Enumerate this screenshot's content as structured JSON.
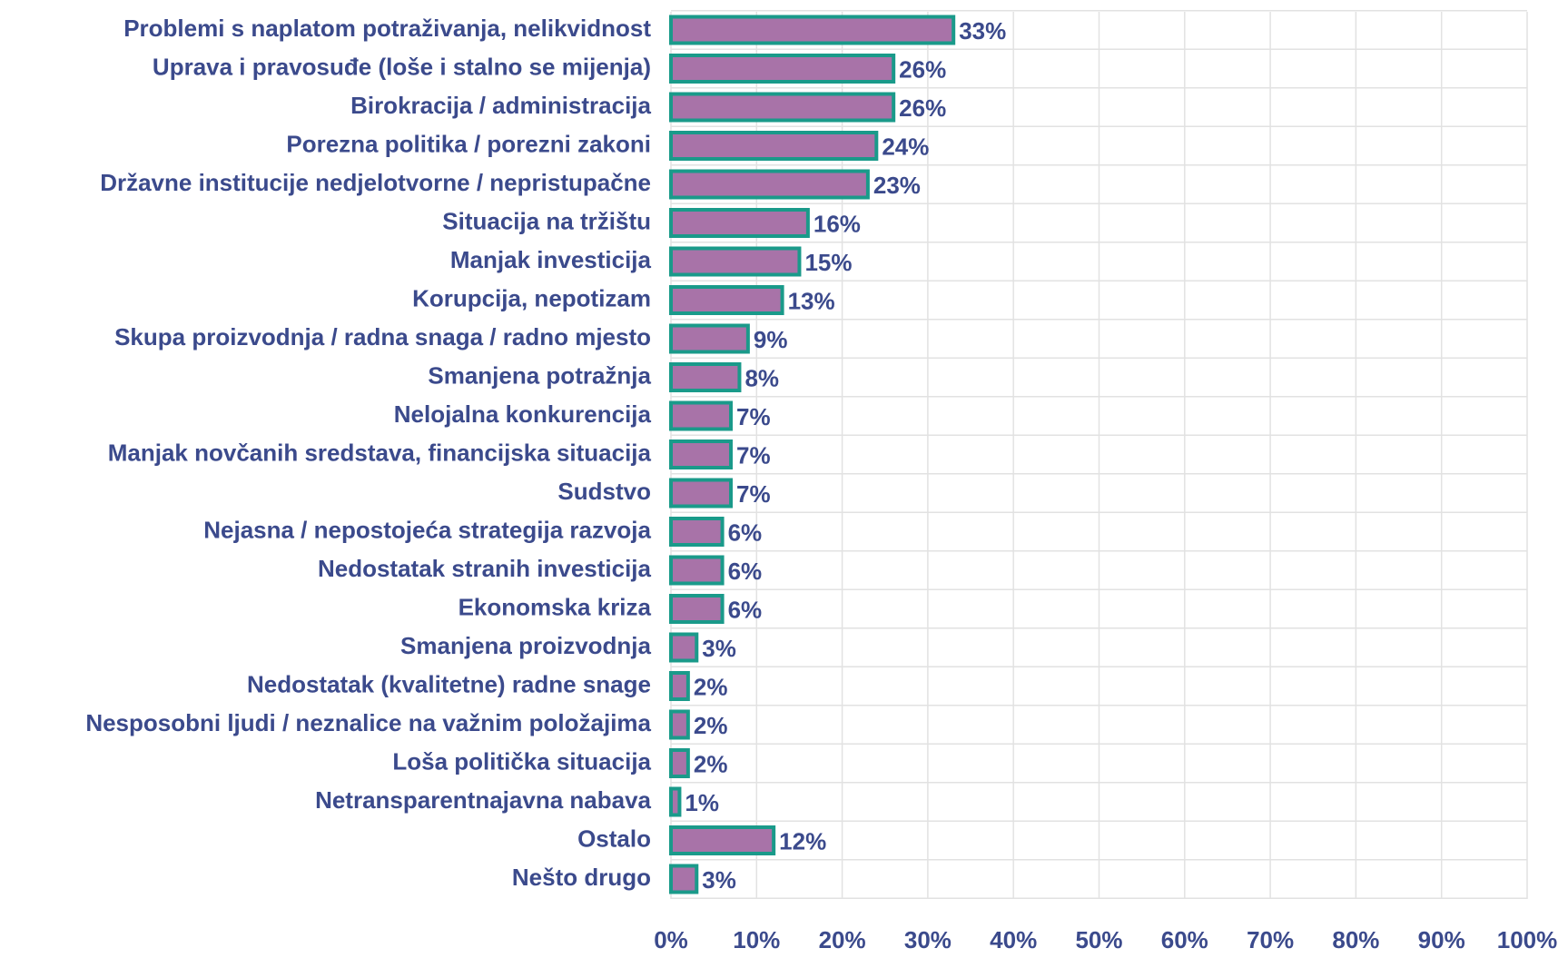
{
  "chart_data": {
    "type": "bar",
    "orientation": "horizontal",
    "categories": [
      "Problemi s naplatom potraživanja, nelikvidnost",
      "Uprava i pravosuđe (loše i stalno se mijenja)",
      "Birokracija / administracija",
      "Porezna politika / porezni zakoni",
      "Državne institucije nedjelotvorne / nepristupačne",
      "Situacija na tržištu",
      "Manjak investicija",
      "Korupcija, nepotizam",
      "Skupa proizvodnja / radna snaga / radno mjesto",
      "Smanjena potražnja",
      "Nelojalna konkurencija",
      "Manjak novčanih sredstava, financijska situacija",
      "Sudstvo",
      "Nejasna / nepostojeća strategija razvoja",
      "Nedostatak stranih investicija",
      "Ekonomska kriza",
      "Smanjena proizvodnja",
      "Nedostatak (kvalitetne) radne snage",
      "Nesposobni ljudi / neznalice na važnim položajima",
      "Loša politička situacija",
      "Netransparentnajavna nabava",
      "Ostalo",
      "Nešto drugo"
    ],
    "values": [
      33,
      26,
      26,
      24,
      23,
      16,
      15,
      13,
      9,
      8,
      7,
      7,
      7,
      6,
      6,
      6,
      3,
      2,
      2,
      2,
      1,
      12,
      3
    ],
    "value_labels": [
      "33%",
      "26%",
      "26%",
      "24%",
      "23%",
      "16%",
      "15%",
      "13%",
      "9%",
      "8%",
      "7%",
      "7%",
      "7%",
      "6%",
      "6%",
      "6%",
      "3%",
      "2%",
      "2%",
      "2%",
      "1%",
      "12%",
      "3%"
    ],
    "color": "#a873a8",
    "edge_color": "#1a9a8a",
    "xlim": [
      0,
      100
    ],
    "xticks": [
      {
        "value": 0,
        "label": "0%"
      },
      {
        "value": 10,
        "label": "10%"
      },
      {
        "value": 20,
        "label": "20%"
      },
      {
        "value": 30,
        "label": "30%"
      },
      {
        "value": 40,
        "label": "40%"
      },
      {
        "value": 50,
        "label": "50%"
      },
      {
        "value": 60,
        "label": "60%"
      },
      {
        "value": 70,
        "label": "70%"
      },
      {
        "value": 80,
        "label": "80%"
      },
      {
        "value": 90,
        "label": "90%"
      },
      {
        "value": 100,
        "label": "100%"
      }
    ],
    "grid": true
  }
}
